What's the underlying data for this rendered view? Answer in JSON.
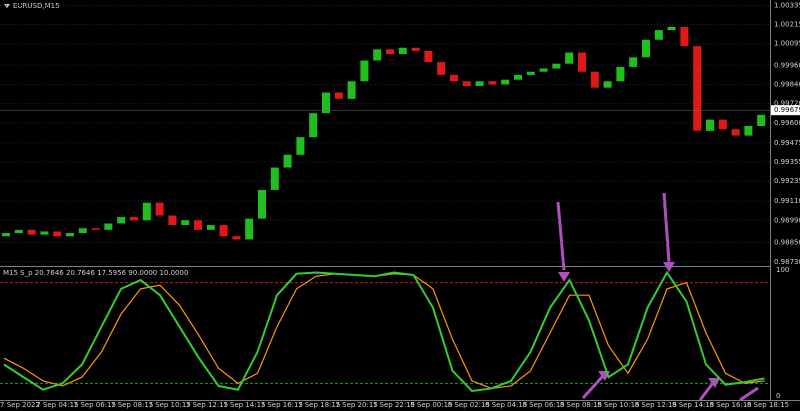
{
  "window_label": "EURUSD,M15",
  "time_labels": [
    "7 Sep 2022",
    "7 Sep 04:15",
    "7 Sep 06:15",
    "7 Sep 08:15",
    "7 Sep 10:15",
    "7 Sep 12:15",
    "7 Sep 14:15",
    "7 Sep 16:15",
    "7 Sep 18:15",
    "7 Sep 20:15",
    "7 Sep 22:15",
    "8 Sep 00:15",
    "8 Sep 02:15",
    "8 Sep 04:15",
    "8 Sep 06:15",
    "8 Sep 08:15",
    "8 Sep 10:15",
    "8 Sep 12:15",
    "8 Sep 14:15",
    "8 Sep 16:15",
    "8 Sep 18:15"
  ],
  "chart_data": [
    {
      "type": "candlestick",
      "open": [
        0.9889,
        0.9891,
        0.9893,
        0.989,
        0.9892,
        0.9889,
        0.9891,
        0.9894,
        0.9893,
        0.9897,
        0.9901,
        0.9899,
        0.991,
        0.9902,
        0.9896,
        0.9899,
        0.9893,
        0.9896,
        0.9889,
        0.9887,
        0.99,
        0.9918,
        0.9932,
        0.994,
        0.9951,
        0.9966,
        0.9979,
        0.9975,
        0.9986,
        0.9999,
        1.0006,
        1.0003,
        1.0007,
        1.0005,
        0.9998,
        0.999,
        0.9986,
        0.9983,
        0.9986,
        0.9984,
        0.9987,
        0.999,
        0.9992,
        0.9994,
        0.9997,
        1.0004,
        0.9992,
        0.9982,
        0.9986,
        0.9995,
        1.0001,
        1.0012,
        1.0018,
        1.002,
        1.0008,
        0.9955,
        0.9962,
        0.9956,
        0.9952,
        0.9958
      ],
      "close": [
        0.9891,
        0.9893,
        0.989,
        0.9892,
        0.9889,
        0.9891,
        0.9894,
        0.9893,
        0.9897,
        0.9901,
        0.9899,
        0.991,
        0.9902,
        0.9896,
        0.9899,
        0.9893,
        0.9896,
        0.9889,
        0.9887,
        0.99,
        0.9918,
        0.9932,
        0.994,
        0.9951,
        0.9966,
        0.9979,
        0.9975,
        0.9986,
        0.9999,
        1.0006,
        1.0003,
        1.0007,
        1.0005,
        0.9998,
        0.999,
        0.9986,
        0.9983,
        0.9986,
        0.9984,
        0.9987,
        0.999,
        0.9992,
        0.9994,
        0.9997,
        1.0004,
        0.9992,
        0.9982,
        0.9986,
        0.9995,
        1.0001,
        1.0012,
        1.0018,
        1.002,
        1.0008,
        0.9955,
        0.9962,
        0.9956,
        0.9952,
        0.9958,
        0.9965
      ],
      "up_color": "#1fbf1f",
      "down_color": "#e01818",
      "ylim": [
        0.9871,
        1.0035
      ],
      "yticks": [
        1.00335,
        1.00215,
        1.00095,
        {
          "value": 0.9996,
          "label": "0.99960"
        },
        {
          "value": 0.9984,
          "label": "0.99840"
        },
        {
          "value": 0.9972,
          "label": "0.99720"
        },
        {
          "value": 0.996,
          "label": "0.99600"
        },
        0.99475,
        0.99355,
        0.99235,
        {
          "value": 0.9911,
          "label": "0.99110"
        },
        {
          "value": 0.9899,
          "label": "0.98990"
        },
        {
          "value": 0.9885,
          "label": "0.98850"
        },
        {
          "value": 0.9873,
          "label": "0.98730"
        }
      ],
      "last_price": 0.99679,
      "grid": true
    },
    {
      "type": "line",
      "title": "M15 S_p 20.7646 20.7646 17.5956 90.0000 10.0000",
      "series": [
        {
          "color": "#33cc33",
          "values": [
            25,
            15,
            5,
            10,
            25,
            55,
            85,
            92,
            80,
            55,
            30,
            8,
            5,
            35,
            80,
            97,
            98,
            97,
            96,
            95,
            98,
            96,
            70,
            20,
            4,
            6,
            12,
            35,
            70,
            92,
            60,
            15,
            25,
            70,
            98,
            75,
            25,
            9,
            11,
            14
          ]
        },
        {
          "color": "#ff9900",
          "values": [
            30,
            22,
            12,
            8,
            15,
            35,
            65,
            85,
            88,
            72,
            48,
            22,
            10,
            18,
            55,
            85,
            95,
            97,
            96,
            95,
            97,
            96,
            85,
            45,
            12,
            6,
            8,
            20,
            50,
            80,
            80,
            40,
            18,
            45,
            85,
            90,
            50,
            18,
            10,
            12
          ]
        }
      ],
      "ylim": [
        0,
        100
      ],
      "yticks": [
        0,
        100
      ],
      "levels": [
        90,
        10
      ],
      "level_colors": [
        "#c02020",
        "#20a020"
      ]
    }
  ]
}
